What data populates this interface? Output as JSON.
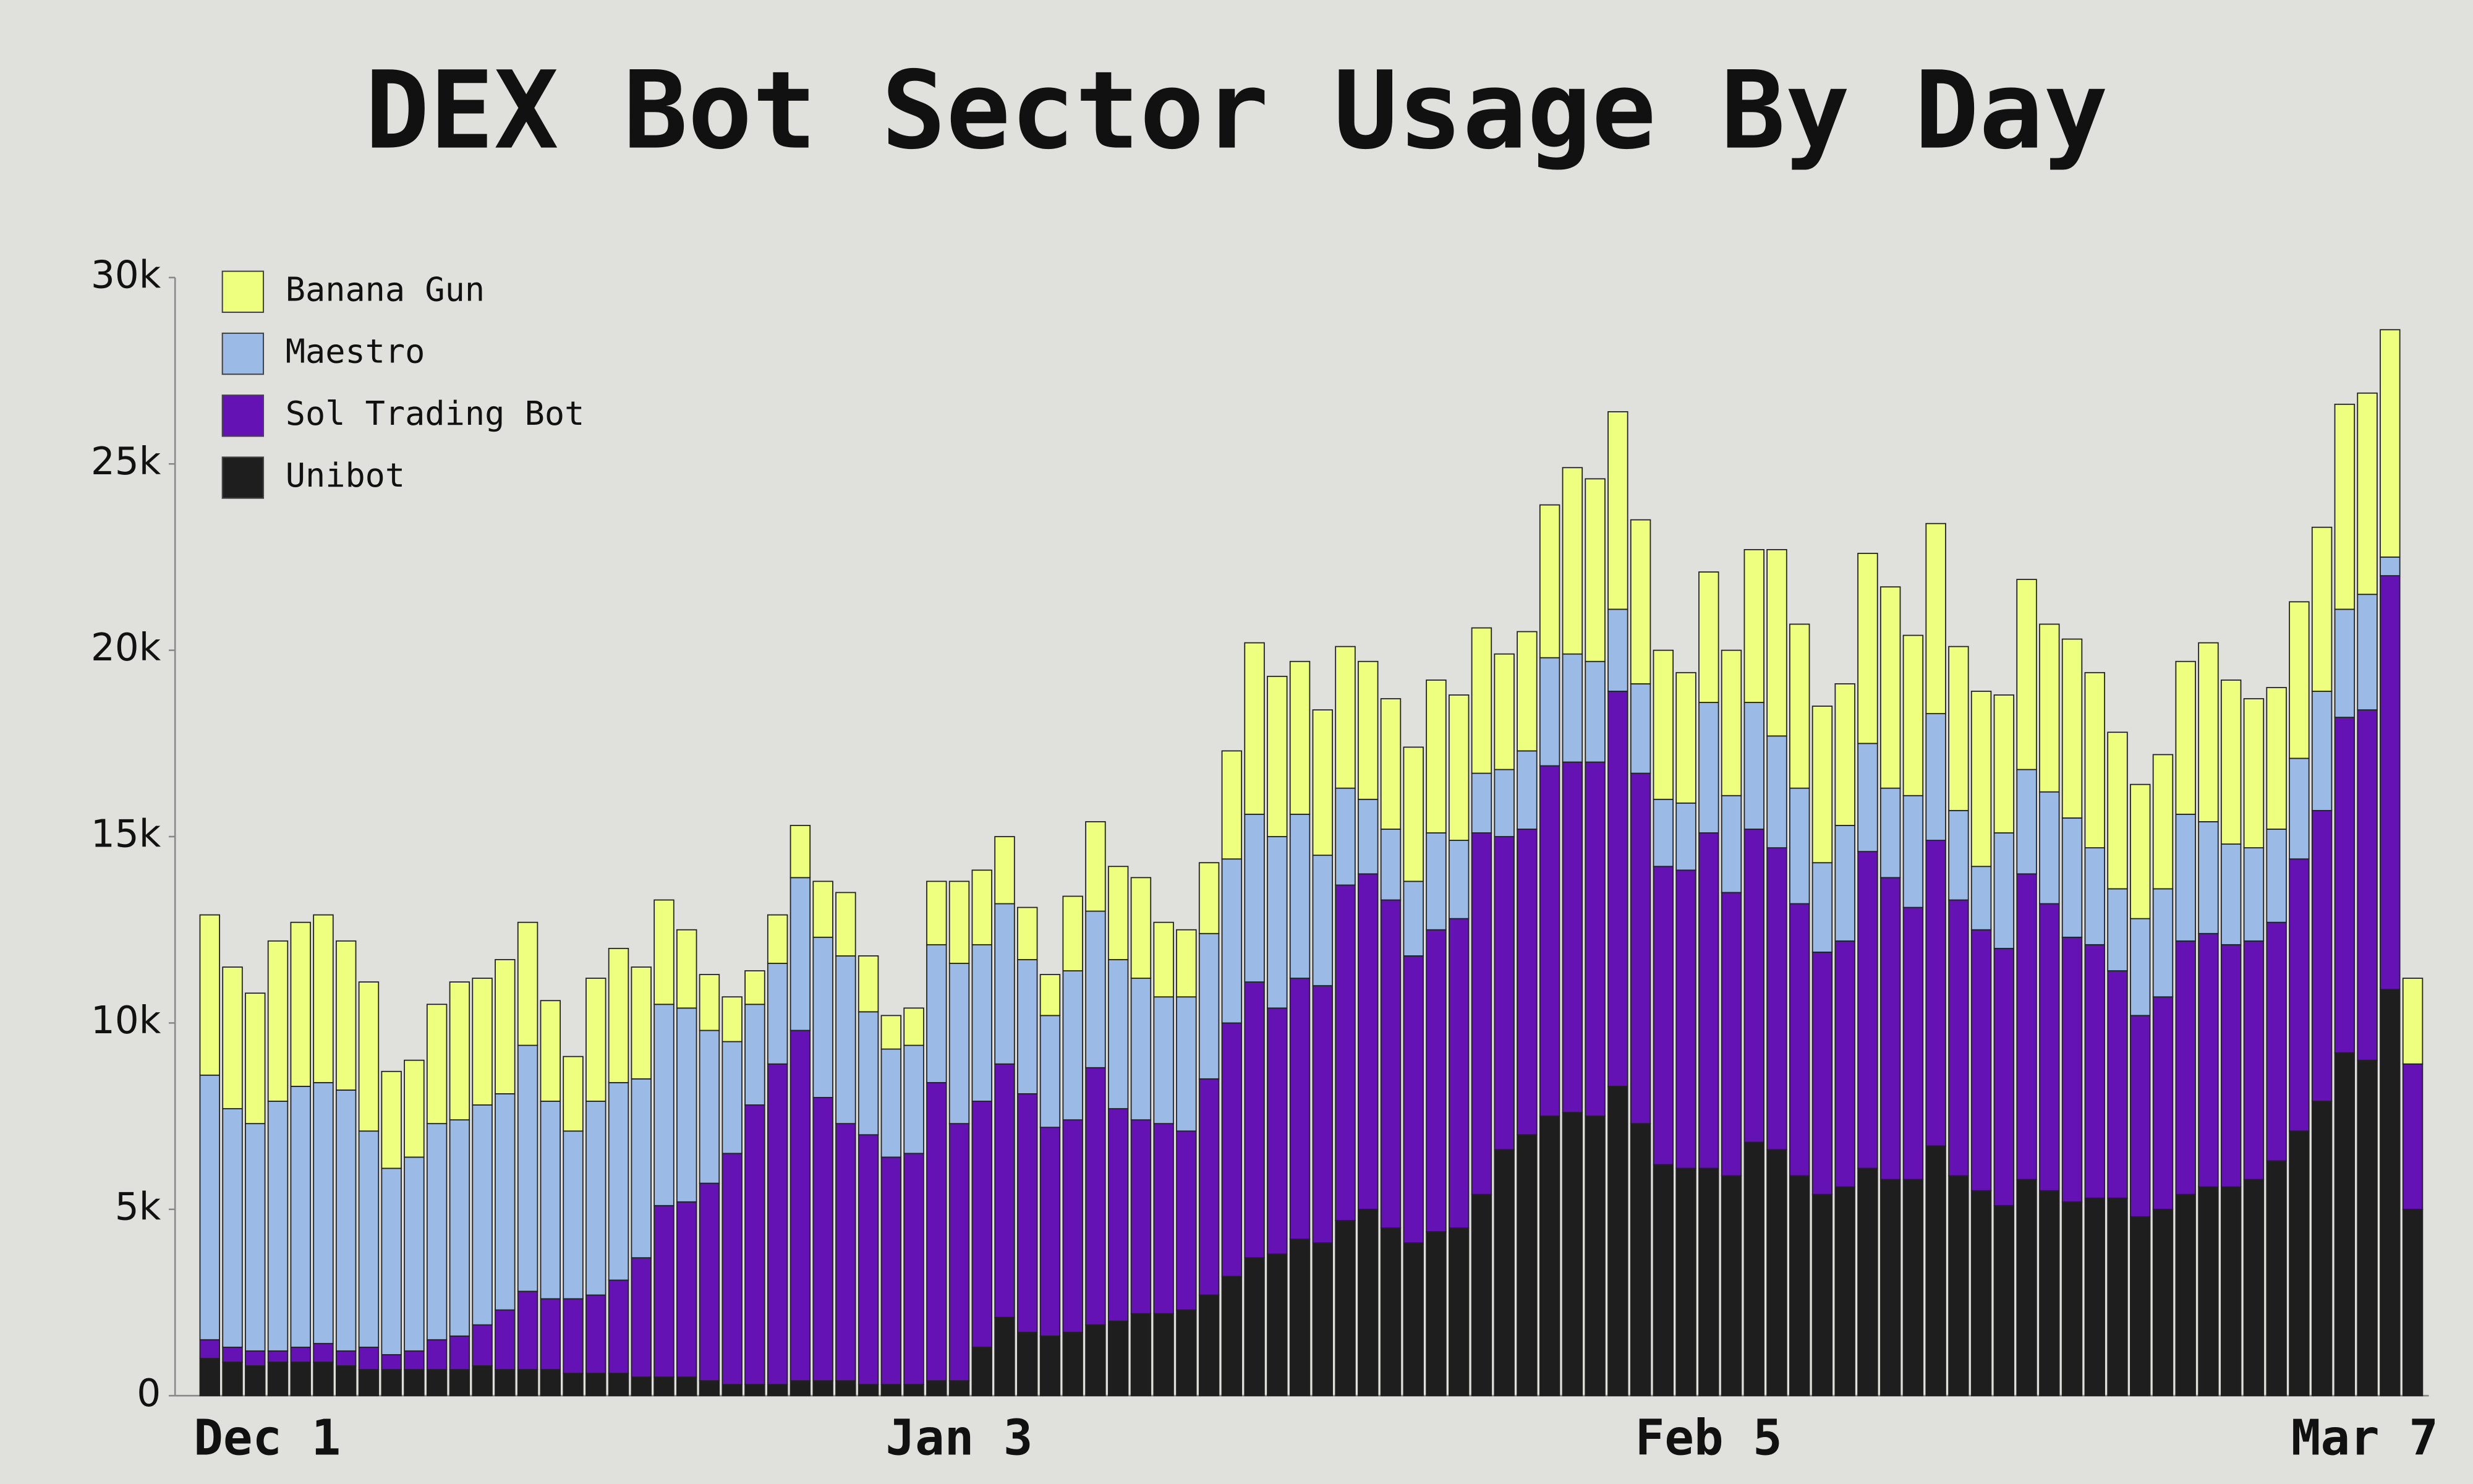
{
  "chart_data": {
    "type": "stacked-bar",
    "title": "DEX Bot Sector Usage By Day",
    "categories": [
      "Dec 1",
      null,
      null,
      null,
      null,
      null,
      null,
      null,
      null,
      null,
      null,
      null,
      null,
      null,
      null,
      null,
      null,
      null,
      null,
      null,
      null,
      null,
      null,
      null,
      null,
      null,
      null,
      null,
      null,
      null,
      null,
      null,
      null,
      "Jan 3",
      null,
      null,
      null,
      null,
      null,
      null,
      null,
      null,
      null,
      null,
      null,
      null,
      null,
      null,
      null,
      null,
      null,
      null,
      null,
      null,
      null,
      null,
      null,
      null,
      null,
      null,
      null,
      null,
      null,
      null,
      null,
      null,
      "Feb 5",
      null,
      null,
      null,
      null,
      null,
      null,
      null,
      null,
      null,
      null,
      null,
      null,
      null,
      null,
      null,
      null,
      null,
      null,
      null,
      null,
      null,
      null,
      null,
      null,
      null,
      null,
      null,
      null,
      null,
      null,
      "Mar 7"
    ],
    "series": [
      {
        "name": "Banana Gun",
        "color": "#eeff80",
        "values": [
          4300,
          3800,
          3500,
          4300,
          4400,
          4500,
          4000,
          4000,
          2600,
          2600,
          3200,
          3700,
          3400,
          3600,
          3300,
          2700,
          2000,
          3300,
          3600,
          3000,
          2800,
          2100,
          1500,
          1200,
          900,
          1300,
          1400,
          1500,
          1700,
          1500,
          900,
          1000,
          1700,
          2200,
          2000,
          1800,
          1400,
          1100,
          2000,
          2400,
          2500,
          2700,
          2000,
          1800,
          1900,
          2900,
          4600,
          4300,
          4100,
          3900,
          3800,
          3700,
          3500,
          3600,
          4100,
          3900,
          3900,
          3100,
          3200,
          4100,
          5000,
          4900,
          5300,
          4400,
          4000,
          3500,
          3500,
          3900,
          4100,
          5000,
          4400,
          4200,
          3800,
          5100,
          5400,
          4300,
          5100,
          4400,
          4700,
          3700,
          5100,
          4500,
          4800,
          4700,
          4200,
          3600,
          3600,
          4100,
          4800,
          4400,
          4000,
          3800,
          4200,
          4400,
          5500,
          5400,
          6100,
          2300
        ]
      },
      {
        "name": "Maestro",
        "color": "#9bbbe6",
        "values": [
          7100,
          6400,
          6100,
          6700,
          7000,
          7000,
          7000,
          5800,
          5000,
          5200,
          5800,
          5800,
          5900,
          5800,
          6600,
          5300,
          4500,
          5200,
          5300,
          4800,
          5400,
          5200,
          4100,
          3000,
          2700,
          2700,
          4100,
          4300,
          4500,
          3300,
          2900,
          2900,
          3700,
          4300,
          4200,
          4300,
          3600,
          3000,
          4000,
          4200,
          4000,
          3800,
          3400,
          3600,
          3900,
          4400,
          4500,
          4600,
          4400,
          3500,
          2600,
          2000,
          1900,
          2000,
          2600,
          2100,
          1600,
          1800,
          2100,
          2900,
          2900,
          2700,
          2200,
          2400,
          1800,
          1800,
          3500,
          2600,
          3400,
          3000,
          3100,
          2400,
          3100,
          2900,
          2400,
          3000,
          3400,
          2400,
          1700,
          3100,
          2800,
          3000,
          3200,
          2600,
          2200,
          2600,
          2900,
          3400,
          3000,
          2700,
          2500,
          2500,
          2700,
          3200,
          2900,
          3100,
          500,
          0
        ]
      },
      {
        "name": "Sol Trading Bot",
        "color": "#6412b4",
        "values": [
          500,
          400,
          400,
          300,
          400,
          500,
          400,
          600,
          400,
          500,
          800,
          900,
          1100,
          1600,
          2100,
          1900,
          2000,
          2100,
          2500,
          3200,
          4600,
          4700,
          5300,
          6200,
          7500,
          8600,
          9400,
          7600,
          6900,
          6700,
          6100,
          6200,
          8000,
          6900,
          6600,
          6800,
          6400,
          5600,
          5700,
          6900,
          5700,
          5200,
          5100,
          4800,
          5800,
          6800,
          7400,
          6600,
          7000,
          6900,
          9000,
          9000,
          8800,
          7700,
          8100,
          8300,
          9700,
          8400,
          8200,
          9400,
          9400,
          9500,
          10600,
          9400,
          8000,
          8000,
          9000,
          7600,
          8400,
          8100,
          7300,
          6500,
          6600,
          8500,
          8100,
          7300,
          8200,
          7400,
          7000,
          6900,
          8200,
          7700,
          7100,
          6800,
          6100,
          5400,
          5700,
          6800,
          6800,
          6500,
          6400,
          6400,
          7300,
          7800,
          9000,
          9400,
          11100,
          3900
        ]
      },
      {
        "name": "Unibot",
        "color": "#1e1e1e",
        "values": [
          1000,
          900,
          800,
          900,
          900,
          900,
          800,
          700,
          700,
          700,
          700,
          700,
          800,
          700,
          700,
          700,
          600,
          600,
          600,
          500,
          500,
          500,
          400,
          300,
          300,
          300,
          400,
          400,
          400,
          300,
          300,
          300,
          400,
          400,
          1300,
          2100,
          1700,
          1600,
          1700,
          1900,
          2000,
          2200,
          2200,
          2300,
          2700,
          3200,
          3700,
          3800,
          4200,
          4100,
          4700,
          5000,
          4500,
          4100,
          4400,
          4500,
          5400,
          6600,
          7000,
          7500,
          7600,
          7500,
          8300,
          7300,
          6200,
          6100,
          6100,
          5900,
          6800,
          6600,
          5900,
          5400,
          5600,
          6100,
          5800,
          5800,
          6700,
          5900,
          5500,
          5100,
          5800,
          5500,
          5200,
          5300,
          5300,
          4800,
          5000,
          5400,
          5600,
          5600,
          5800,
          6300,
          7100,
          7900,
          9200,
          9000,
          10900,
          5000
        ]
      }
    ],
    "ylim": [
      0,
      30000
    ],
    "yticks": [
      0,
      {
        "value": 5000,
        "label": "5k"
      },
      {
        "value": 10000,
        "label": "10k"
      },
      {
        "value": 15000,
        "label": "15k"
      },
      {
        "value": 20000,
        "label": "20k"
      },
      {
        "value": 25000,
        "label": "25k"
      },
      {
        "value": 30000,
        "label": "30k"
      }
    ],
    "legend": "top-left"
  }
}
